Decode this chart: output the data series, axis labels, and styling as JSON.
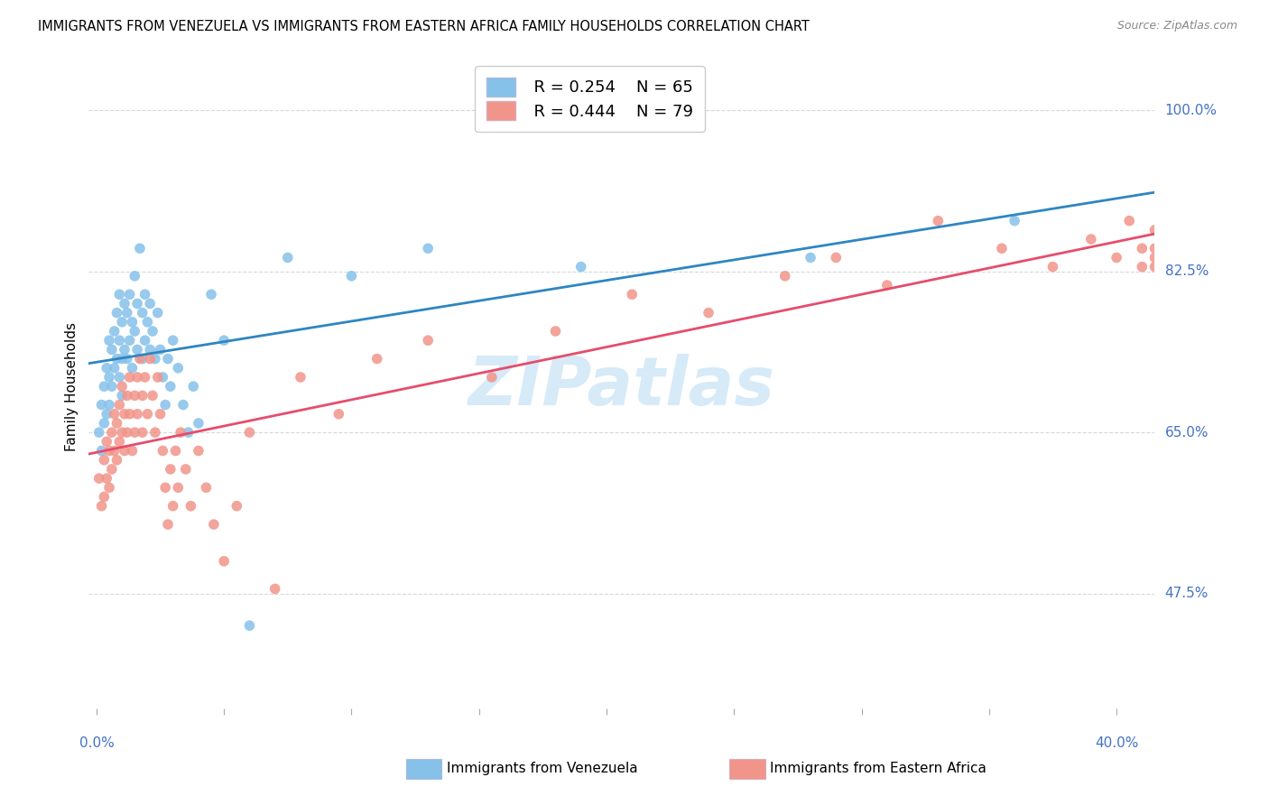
{
  "title": "IMMIGRANTS FROM VENEZUELA VS IMMIGRANTS FROM EASTERN AFRICA FAMILY HOUSEHOLDS CORRELATION CHART",
  "source": "Source: ZipAtlas.com",
  "ylabel": "Family Households",
  "ytick_labels": [
    "100.0%",
    "82.5%",
    "65.0%",
    "47.5%"
  ],
  "ytick_values": [
    1.0,
    0.825,
    0.65,
    0.475
  ],
  "y_min": 0.35,
  "y_max": 1.05,
  "x_min": -0.003,
  "x_max": 0.415,
  "legend_r1": "R = 0.254",
  "legend_n1": "N = 65",
  "legend_r2": "R = 0.444",
  "legend_n2": "N = 79",
  "color_venezuela": "#85C1E9",
  "color_eastern_africa": "#F1948A",
  "color_line_venezuela": "#2E86C1",
  "color_line_eastern_africa": "#E74C6C",
  "color_axis_labels": "#4472C4",
  "color_grid": "#D5D8DC",
  "watermark_color": "#D6EAF8",
  "venezuela_x": [
    0.001,
    0.002,
    0.002,
    0.003,
    0.003,
    0.004,
    0.004,
    0.005,
    0.005,
    0.005,
    0.006,
    0.006,
    0.007,
    0.007,
    0.008,
    0.008,
    0.009,
    0.009,
    0.009,
    0.01,
    0.01,
    0.01,
    0.011,
    0.011,
    0.012,
    0.012,
    0.013,
    0.013,
    0.014,
    0.014,
    0.015,
    0.015,
    0.016,
    0.016,
    0.017,
    0.018,
    0.018,
    0.019,
    0.019,
    0.02,
    0.021,
    0.021,
    0.022,
    0.023,
    0.024,
    0.025,
    0.026,
    0.027,
    0.028,
    0.029,
    0.03,
    0.032,
    0.034,
    0.036,
    0.038,
    0.04,
    0.045,
    0.05,
    0.06,
    0.075,
    0.1,
    0.13,
    0.19,
    0.28,
    0.36
  ],
  "venezuela_y": [
    0.65,
    0.68,
    0.63,
    0.7,
    0.66,
    0.72,
    0.67,
    0.75,
    0.71,
    0.68,
    0.74,
    0.7,
    0.76,
    0.72,
    0.78,
    0.73,
    0.8,
    0.75,
    0.71,
    0.77,
    0.73,
    0.69,
    0.79,
    0.74,
    0.78,
    0.73,
    0.8,
    0.75,
    0.77,
    0.72,
    0.82,
    0.76,
    0.79,
    0.74,
    0.85,
    0.78,
    0.73,
    0.8,
    0.75,
    0.77,
    0.79,
    0.74,
    0.76,
    0.73,
    0.78,
    0.74,
    0.71,
    0.68,
    0.73,
    0.7,
    0.75,
    0.72,
    0.68,
    0.65,
    0.7,
    0.66,
    0.8,
    0.75,
    0.44,
    0.84,
    0.82,
    0.85,
    0.83,
    0.84,
    0.88
  ],
  "eastern_africa_x": [
    0.001,
    0.002,
    0.003,
    0.003,
    0.004,
    0.004,
    0.005,
    0.005,
    0.006,
    0.006,
    0.007,
    0.007,
    0.008,
    0.008,
    0.009,
    0.009,
    0.01,
    0.01,
    0.011,
    0.011,
    0.012,
    0.012,
    0.013,
    0.013,
    0.014,
    0.015,
    0.015,
    0.016,
    0.016,
    0.017,
    0.018,
    0.018,
    0.019,
    0.02,
    0.021,
    0.022,
    0.023,
    0.024,
    0.025,
    0.026,
    0.027,
    0.028,
    0.029,
    0.03,
    0.031,
    0.032,
    0.033,
    0.035,
    0.037,
    0.04,
    0.043,
    0.046,
    0.05,
    0.055,
    0.06,
    0.07,
    0.08,
    0.095,
    0.11,
    0.13,
    0.155,
    0.18,
    0.21,
    0.24,
    0.27,
    0.29,
    0.31,
    0.33,
    0.355,
    0.375,
    0.39,
    0.4,
    0.405,
    0.41,
    0.41,
    0.415,
    0.415,
    0.415,
    0.415
  ],
  "eastern_africa_y": [
    0.6,
    0.57,
    0.62,
    0.58,
    0.64,
    0.6,
    0.63,
    0.59,
    0.65,
    0.61,
    0.67,
    0.63,
    0.66,
    0.62,
    0.68,
    0.64,
    0.7,
    0.65,
    0.67,
    0.63,
    0.69,
    0.65,
    0.71,
    0.67,
    0.63,
    0.69,
    0.65,
    0.71,
    0.67,
    0.73,
    0.69,
    0.65,
    0.71,
    0.67,
    0.73,
    0.69,
    0.65,
    0.71,
    0.67,
    0.63,
    0.59,
    0.55,
    0.61,
    0.57,
    0.63,
    0.59,
    0.65,
    0.61,
    0.57,
    0.63,
    0.59,
    0.55,
    0.51,
    0.57,
    0.65,
    0.48,
    0.71,
    0.67,
    0.73,
    0.75,
    0.71,
    0.76,
    0.8,
    0.78,
    0.82,
    0.84,
    0.81,
    0.88,
    0.85,
    0.83,
    0.86,
    0.84,
    0.88,
    0.85,
    0.83,
    0.87,
    0.84,
    0.83,
    0.85
  ]
}
